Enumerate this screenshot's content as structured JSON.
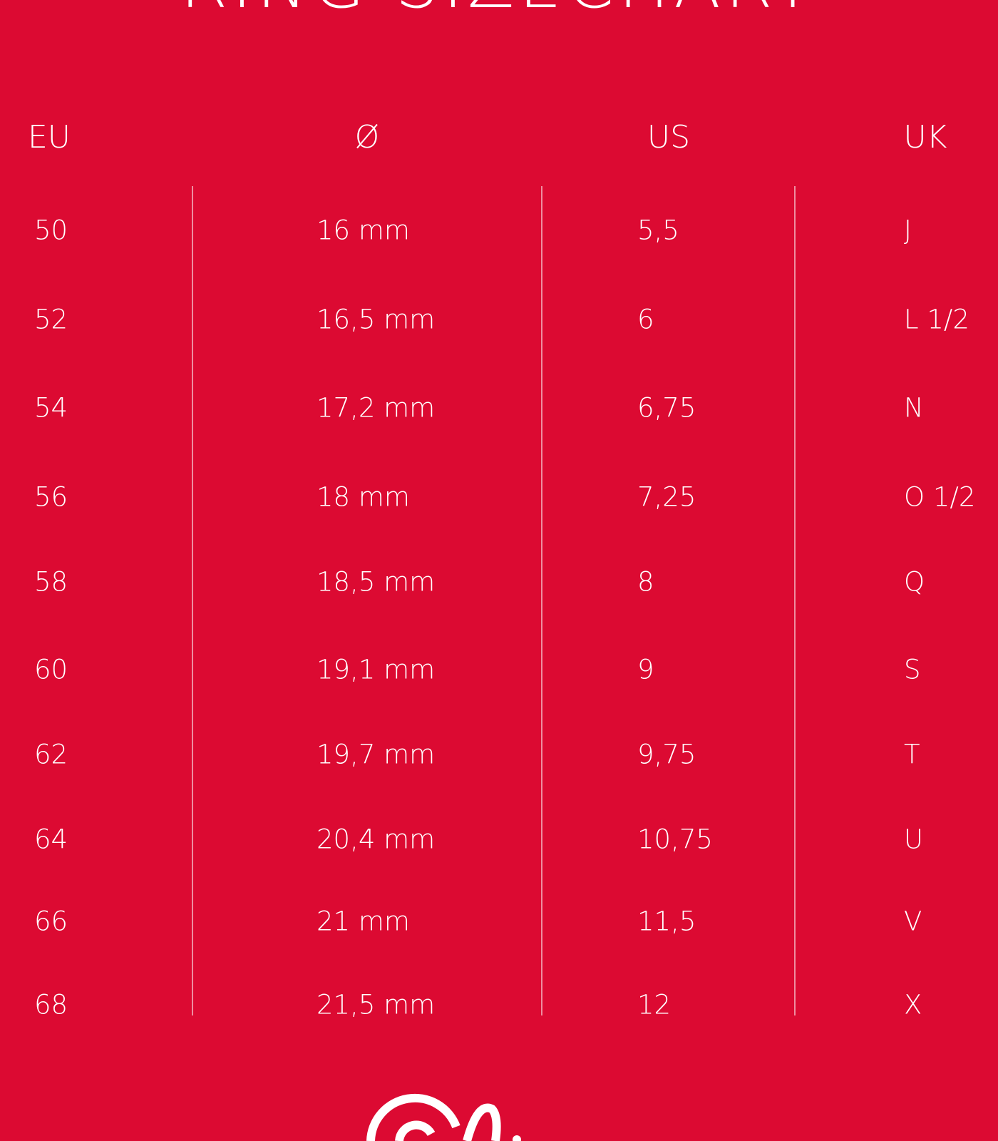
{
  "header": {
    "title": "RING SIZECHART"
  },
  "table": {
    "columns": [
      "EU",
      "Ø",
      "US",
      "UK"
    ],
    "rows": [
      [
        "50",
        "16 mm",
        "5,5",
        "J"
      ],
      [
        "52",
        "16,5 mm",
        "6",
        "L 1/2"
      ],
      [
        "54",
        "17,2 mm",
        "6,75",
        "N"
      ],
      [
        "56",
        "18 mm",
        "7,25",
        "O 1/2"
      ],
      [
        "58",
        "18,5 mm",
        "8",
        "Q"
      ],
      [
        "60",
        "19,1 mm",
        "9",
        "S"
      ],
      [
        "62",
        "19,7 mm",
        "9,75",
        "T"
      ],
      [
        "64",
        "20,4 mm",
        "10,75",
        "U"
      ],
      [
        "66",
        "21 mm",
        "11,5",
        "V"
      ],
      [
        "68",
        "21,5 mm",
        "12",
        "X"
      ]
    ]
  }
}
